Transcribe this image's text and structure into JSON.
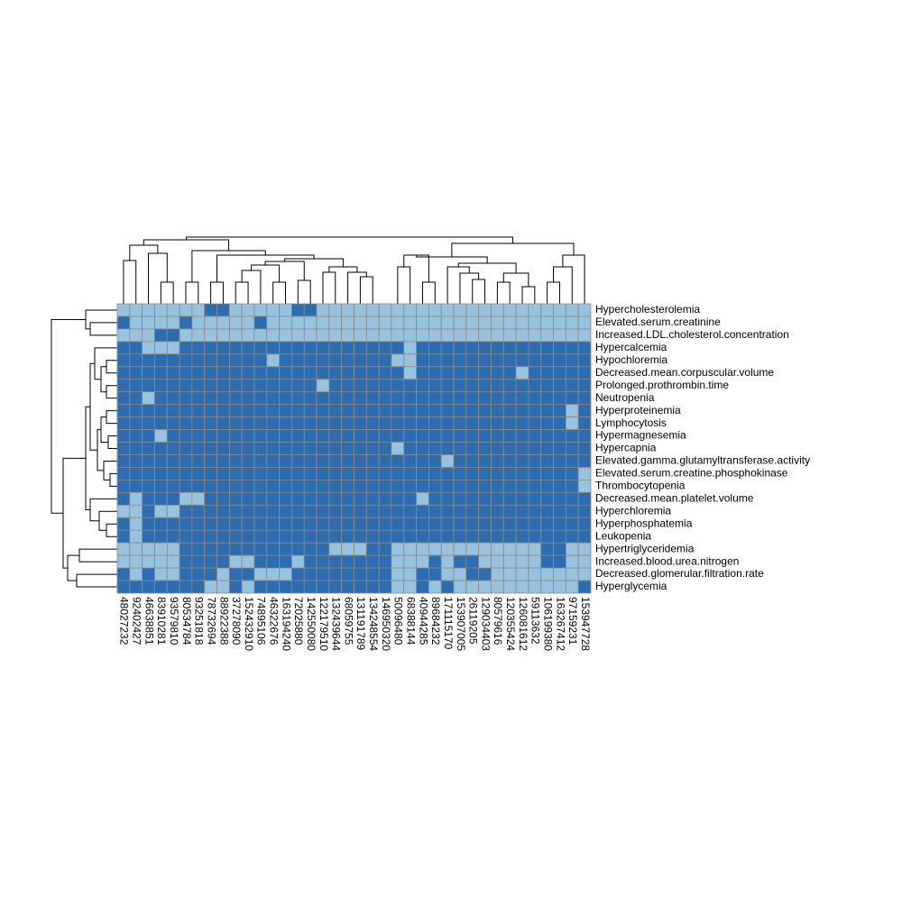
{
  "chart_data": {
    "type": "heatmap",
    "rows": [
      "Hypercholesterolemia",
      "Elevated.serum.creatinine",
      "Increased.LDL.cholesterol.concentration",
      "Hypercalcemia",
      "Hypochloremia",
      "Decreased.mean.corpuscular.volume",
      "Prolonged.prothrombin.time",
      "Neutropenia",
      "Hyperproteinemia",
      "Lymphocytosis",
      "Hypermagnesemia",
      "Hypercapnia",
      "Elevated.gamma.glutamyltransferase.activity",
      "Elevated.serum.creatine.phosphokinase",
      "Thrombocytopenia",
      "Decreased.mean.platelet.volume",
      "Hyperchloremia",
      "Hyperphosphatemia",
      "Leukopenia",
      "Hypertriglyceridemia",
      "Increased.blood.urea.nitrogen",
      "Decreased.glomerular.filtration.rate",
      "Hyperglycemia"
    ],
    "columns": [
      "48027232",
      "92402427",
      "46638851",
      "83910281",
      "93579810",
      "80534784",
      "93251818",
      "78732694",
      "88922388",
      "37278090",
      "152432910",
      "74895106",
      "46322676",
      "163194240",
      "72025880",
      "142550080",
      "122179510",
      "132439644",
      "68059755",
      "131191789",
      "134248554",
      "146950320",
      "50096480",
      "68388144",
      "40944285",
      "89684232",
      "171115170",
      "153907005",
      "26119205",
      "129034403",
      "80579616",
      "120355424",
      "126081612",
      "59113632",
      "106199380",
      "163267412",
      "97159231",
      "153947728"
    ],
    "colors": [
      "#97c3df",
      "#2c6cb1"
    ],
    "values": [
      [
        0,
        0,
        0,
        0,
        0,
        0,
        0,
        1,
        1,
        0,
        0,
        0,
        0,
        0,
        1,
        1,
        0,
        0,
        0,
        0,
        0,
        0,
        0,
        0,
        0,
        0,
        0,
        0,
        0,
        0,
        0,
        0,
        0,
        0,
        0,
        0,
        0,
        0
      ],
      [
        1,
        0,
        0,
        0,
        0,
        1,
        0,
        0,
        0,
        0,
        0,
        1,
        0,
        0,
        0,
        0,
        0,
        0,
        0,
        0,
        0,
        0,
        0,
        0,
        0,
        0,
        0,
        0,
        0,
        0,
        0,
        0,
        0,
        0,
        0,
        0,
        0,
        0
      ],
      [
        0,
        0,
        0,
        1,
        1,
        0,
        0,
        0,
        0,
        0,
        0,
        0,
        0,
        0,
        0,
        0,
        0,
        0,
        0,
        0,
        0,
        0,
        0,
        0,
        0,
        0,
        0,
        0,
        0,
        0,
        0,
        0,
        0,
        0,
        0,
        0,
        0,
        0
      ],
      [
        1,
        1,
        0,
        0,
        0,
        1,
        1,
        1,
        1,
        1,
        1,
        1,
        1,
        1,
        1,
        1,
        1,
        1,
        1,
        1,
        1,
        1,
        1,
        0,
        1,
        1,
        1,
        1,
        1,
        1,
        1,
        1,
        1,
        1,
        1,
        1,
        1,
        1
      ],
      [
        1,
        1,
        1,
        1,
        1,
        1,
        1,
        1,
        1,
        1,
        1,
        1,
        0,
        1,
        1,
        1,
        1,
        1,
        1,
        1,
        1,
        1,
        0,
        0,
        1,
        1,
        1,
        1,
        1,
        1,
        1,
        1,
        1,
        1,
        1,
        1,
        1,
        1
      ],
      [
        1,
        1,
        1,
        1,
        1,
        1,
        1,
        1,
        1,
        1,
        1,
        1,
        1,
        1,
        1,
        1,
        1,
        1,
        1,
        1,
        1,
        1,
        1,
        0,
        1,
        1,
        1,
        1,
        1,
        1,
        1,
        1,
        0,
        1,
        1,
        1,
        1,
        1
      ],
      [
        1,
        1,
        1,
        1,
        1,
        1,
        1,
        1,
        1,
        1,
        1,
        1,
        1,
        1,
        1,
        1,
        0,
        1,
        1,
        1,
        1,
        1,
        1,
        1,
        1,
        1,
        1,
        1,
        1,
        1,
        1,
        1,
        1,
        1,
        1,
        1,
        1,
        1
      ],
      [
        1,
        1,
        0,
        1,
        1,
        1,
        1,
        1,
        1,
        1,
        1,
        1,
        1,
        1,
        1,
        1,
        1,
        1,
        1,
        1,
        1,
        1,
        1,
        1,
        1,
        1,
        1,
        1,
        1,
        1,
        1,
        1,
        1,
        1,
        1,
        1,
        1,
        1
      ],
      [
        1,
        1,
        1,
        1,
        1,
        1,
        1,
        1,
        1,
        1,
        1,
        1,
        1,
        1,
        1,
        1,
        1,
        1,
        1,
        1,
        1,
        1,
        1,
        1,
        1,
        1,
        1,
        1,
        1,
        1,
        1,
        1,
        1,
        1,
        1,
        1,
        0,
        1
      ],
      [
        1,
        1,
        1,
        1,
        1,
        1,
        1,
        1,
        1,
        1,
        1,
        1,
        1,
        1,
        1,
        1,
        1,
        1,
        1,
        1,
        1,
        1,
        1,
        1,
        1,
        1,
        1,
        1,
        1,
        1,
        1,
        1,
        1,
        1,
        1,
        1,
        0,
        1
      ],
      [
        1,
        1,
        1,
        0,
        1,
        1,
        1,
        1,
        1,
        1,
        1,
        1,
        1,
        1,
        1,
        1,
        1,
        1,
        1,
        1,
        1,
        1,
        1,
        1,
        1,
        1,
        1,
        1,
        1,
        1,
        1,
        1,
        1,
        1,
        1,
        1,
        1,
        1
      ],
      [
        1,
        1,
        1,
        1,
        1,
        1,
        1,
        1,
        1,
        1,
        1,
        1,
        1,
        1,
        1,
        1,
        1,
        1,
        1,
        1,
        1,
        1,
        0,
        1,
        1,
        1,
        1,
        1,
        1,
        1,
        1,
        1,
        1,
        1,
        1,
        1,
        1,
        1
      ],
      [
        1,
        1,
        1,
        1,
        1,
        1,
        1,
        1,
        1,
        1,
        1,
        1,
        1,
        1,
        1,
        1,
        1,
        1,
        1,
        1,
        1,
        1,
        1,
        1,
        1,
        1,
        0,
        1,
        1,
        1,
        1,
        1,
        1,
        1,
        1,
        1,
        1,
        1
      ],
      [
        1,
        1,
        1,
        1,
        1,
        1,
        1,
        1,
        1,
        1,
        1,
        1,
        1,
        1,
        1,
        1,
        1,
        1,
        1,
        1,
        1,
        1,
        1,
        1,
        1,
        1,
        1,
        1,
        1,
        1,
        1,
        1,
        1,
        1,
        1,
        1,
        1,
        0
      ],
      [
        1,
        1,
        1,
        1,
        1,
        1,
        1,
        1,
        1,
        1,
        1,
        1,
        1,
        1,
        1,
        1,
        1,
        1,
        1,
        1,
        1,
        1,
        1,
        1,
        1,
        1,
        1,
        1,
        1,
        1,
        1,
        1,
        1,
        1,
        1,
        1,
        1,
        0
      ],
      [
        1,
        0,
        1,
        1,
        1,
        0,
        0,
        1,
        1,
        1,
        1,
        1,
        1,
        1,
        1,
        1,
        1,
        1,
        1,
        1,
        1,
        1,
        1,
        1,
        0,
        1,
        1,
        1,
        1,
        1,
        1,
        1,
        1,
        1,
        1,
        1,
        1,
        1
      ],
      [
        0,
        0,
        1,
        0,
        0,
        1,
        1,
        1,
        1,
        1,
        1,
        1,
        1,
        1,
        1,
        1,
        1,
        1,
        1,
        1,
        1,
        1,
        1,
        1,
        1,
        1,
        1,
        1,
        1,
        1,
        1,
        1,
        1,
        1,
        1,
        1,
        1,
        1
      ],
      [
        1,
        0,
        1,
        1,
        1,
        1,
        1,
        1,
        1,
        1,
        1,
        1,
        1,
        1,
        1,
        1,
        1,
        1,
        1,
        1,
        1,
        1,
        1,
        1,
        1,
        1,
        1,
        1,
        1,
        1,
        1,
        1,
        1,
        1,
        1,
        1,
        1,
        1
      ],
      [
        1,
        0,
        1,
        1,
        1,
        1,
        1,
        1,
        1,
        1,
        1,
        1,
        1,
        1,
        1,
        1,
        1,
        1,
        1,
        1,
        1,
        1,
        1,
        1,
        1,
        1,
        1,
        1,
        1,
        1,
        1,
        1,
        1,
        1,
        1,
        1,
        1,
        1
      ],
      [
        0,
        0,
        0,
        0,
        0,
        1,
        1,
        1,
        1,
        1,
        1,
        1,
        1,
        1,
        1,
        1,
        1,
        0,
        0,
        0,
        1,
        1,
        0,
        0,
        0,
        0,
        0,
        0,
        0,
        0,
        0,
        0,
        0,
        0,
        1,
        1,
        0,
        0
      ],
      [
        0,
        0,
        0,
        0,
        0,
        1,
        1,
        1,
        1,
        0,
        0,
        1,
        1,
        1,
        0,
        1,
        1,
        1,
        1,
        1,
        1,
        1,
        0,
        0,
        0,
        1,
        0,
        1,
        1,
        0,
        0,
        0,
        0,
        0,
        1,
        1,
        0,
        0
      ],
      [
        1,
        0,
        1,
        0,
        0,
        1,
        1,
        1,
        0,
        1,
        1,
        0,
        0,
        0,
        1,
        1,
        1,
        1,
        1,
        1,
        1,
        1,
        0,
        0,
        1,
        1,
        0,
        0,
        1,
        1,
        0,
        0,
        0,
        0,
        0,
        0,
        0,
        0
      ],
      [
        1,
        1,
        1,
        1,
        1,
        1,
        1,
        0,
        0,
        1,
        0,
        1,
        1,
        1,
        1,
        1,
        1,
        1,
        1,
        1,
        1,
        1,
        0,
        0,
        1,
        0,
        1,
        0,
        0,
        0,
        0,
        0,
        0,
        0,
        0,
        0,
        0,
        1
      ]
    ]
  }
}
